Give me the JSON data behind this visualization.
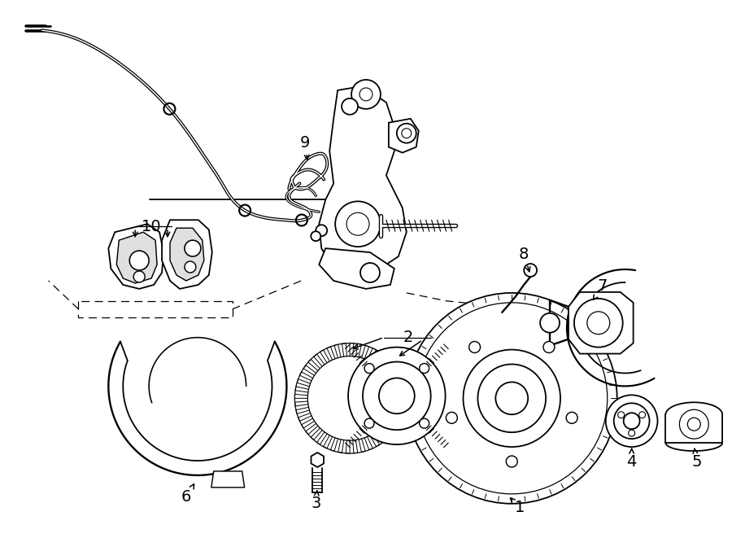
{
  "background_color": "#ffffff",
  "line_color": "#000000",
  "figsize": [
    9.0,
    6.61
  ],
  "dpi": 100,
  "lw": 1.3,
  "label_fontsize": 14
}
